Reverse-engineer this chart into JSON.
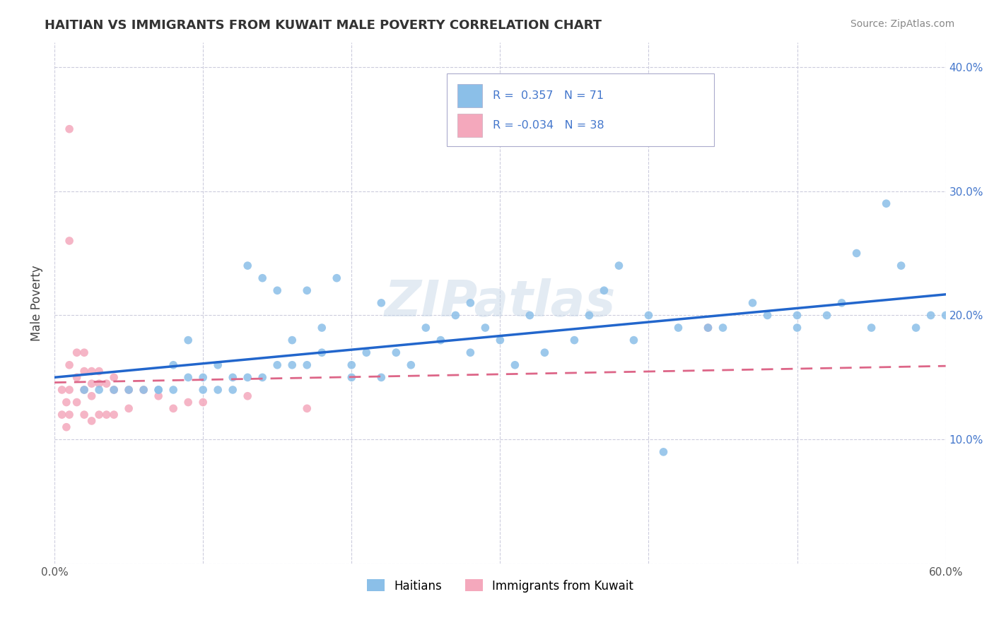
{
  "title": "HAITIAN VS IMMIGRANTS FROM KUWAIT MALE POVERTY CORRELATION CHART",
  "source": "Source: ZipAtlas.com",
  "ylabel": "Male Poverty",
  "watermark": "ZIPatlas",
  "legend_label1": "Haitians",
  "legend_label2": "Immigrants from Kuwait",
  "xmin": 0.0,
  "xmax": 0.6,
  "ymin": 0.0,
  "ymax": 0.42,
  "yticks": [
    0.0,
    0.1,
    0.2,
    0.3,
    0.4
  ],
  "ytick_labels_right": [
    "",
    "10.0%",
    "20.0%",
    "30.0%",
    "40.0%"
  ],
  "xticks": [
    0.0,
    0.1,
    0.2,
    0.3,
    0.4,
    0.5,
    0.6
  ],
  "xtick_labels": [
    "0.0%",
    "",
    "",
    "",
    "",
    "",
    "60.0%"
  ],
  "blue_color": "#8bbfe8",
  "pink_color": "#f4a8bc",
  "blue_line_color": "#2266cc",
  "pink_line_color": "#dd6688",
  "background_color": "#ffffff",
  "grid_color": "#ccccdd",
  "legend_box_color": "#aaaacc",
  "right_axis_color": "#4477cc",
  "blue_x": [
    0.02,
    0.03,
    0.04,
    0.05,
    0.06,
    0.07,
    0.07,
    0.08,
    0.08,
    0.09,
    0.09,
    0.1,
    0.1,
    0.11,
    0.11,
    0.12,
    0.12,
    0.13,
    0.13,
    0.14,
    0.14,
    0.15,
    0.15,
    0.16,
    0.16,
    0.17,
    0.17,
    0.18,
    0.18,
    0.19,
    0.2,
    0.2,
    0.21,
    0.22,
    0.22,
    0.23,
    0.24,
    0.25,
    0.26,
    0.27,
    0.28,
    0.28,
    0.29,
    0.3,
    0.31,
    0.32,
    0.33,
    0.35,
    0.36,
    0.37,
    0.38,
    0.39,
    0.4,
    0.41,
    0.42,
    0.44,
    0.45,
    0.47,
    0.48,
    0.5,
    0.52,
    0.53,
    0.54,
    0.55,
    0.56,
    0.57,
    0.58,
    0.59,
    0.6,
    0.61,
    0.5
  ],
  "blue_y": [
    0.14,
    0.14,
    0.14,
    0.14,
    0.14,
    0.14,
    0.14,
    0.14,
    0.16,
    0.15,
    0.18,
    0.14,
    0.15,
    0.14,
    0.16,
    0.15,
    0.14,
    0.15,
    0.24,
    0.15,
    0.23,
    0.16,
    0.22,
    0.16,
    0.18,
    0.16,
    0.22,
    0.17,
    0.19,
    0.23,
    0.15,
    0.16,
    0.17,
    0.15,
    0.21,
    0.17,
    0.16,
    0.19,
    0.18,
    0.2,
    0.17,
    0.21,
    0.19,
    0.18,
    0.16,
    0.2,
    0.17,
    0.18,
    0.2,
    0.22,
    0.24,
    0.18,
    0.2,
    0.09,
    0.19,
    0.19,
    0.19,
    0.21,
    0.2,
    0.2,
    0.2,
    0.21,
    0.25,
    0.19,
    0.29,
    0.24,
    0.19,
    0.2,
    0.2,
    0.19,
    0.19
  ],
  "pink_x": [
    0.005,
    0.005,
    0.008,
    0.008,
    0.01,
    0.01,
    0.01,
    0.01,
    0.01,
    0.015,
    0.015,
    0.015,
    0.02,
    0.02,
    0.02,
    0.02,
    0.025,
    0.025,
    0.025,
    0.025,
    0.03,
    0.03,
    0.03,
    0.035,
    0.035,
    0.04,
    0.04,
    0.04,
    0.05,
    0.05,
    0.06,
    0.07,
    0.08,
    0.09,
    0.1,
    0.13,
    0.17,
    0.44
  ],
  "pink_y": [
    0.14,
    0.12,
    0.13,
    0.11,
    0.35,
    0.26,
    0.16,
    0.14,
    0.12,
    0.17,
    0.15,
    0.13,
    0.17,
    0.155,
    0.14,
    0.12,
    0.155,
    0.145,
    0.135,
    0.115,
    0.155,
    0.145,
    0.12,
    0.145,
    0.12,
    0.15,
    0.14,
    0.12,
    0.14,
    0.125,
    0.14,
    0.135,
    0.125,
    0.13,
    0.13,
    0.135,
    0.125,
    0.19
  ]
}
